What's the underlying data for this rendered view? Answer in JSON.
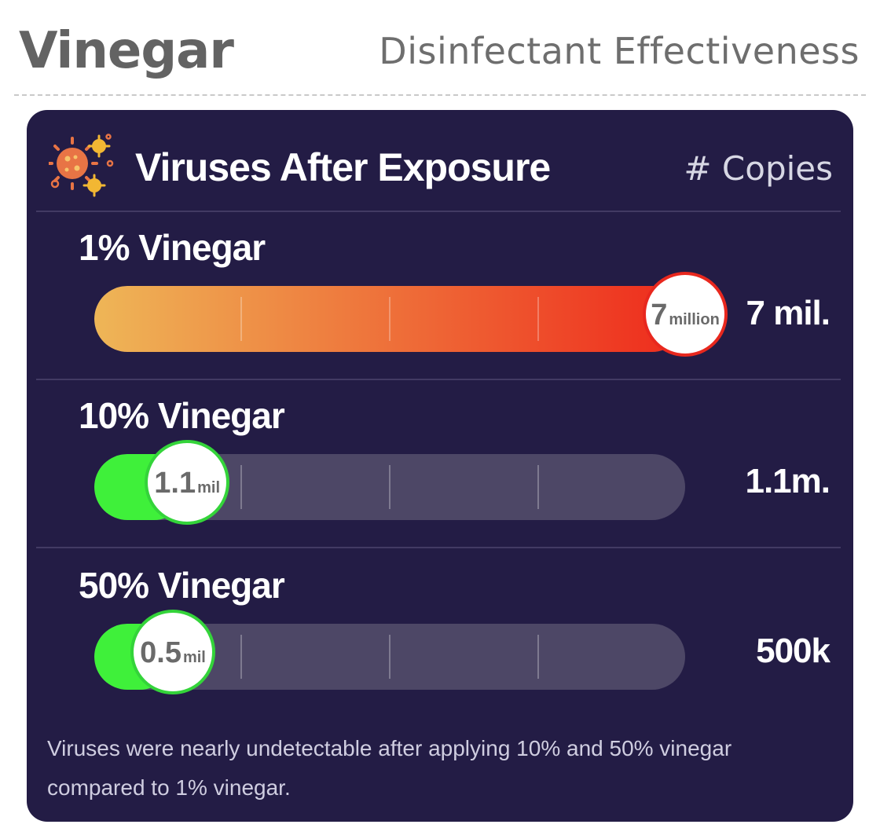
{
  "header": {
    "title": "Vinegar",
    "subtitle": "Disinfectant Effectiveness"
  },
  "card": {
    "title": "Viruses After Exposure",
    "unit_label": "# Copies",
    "icon": "virus-icon",
    "footnote": "Viruses were nearly undetectable after applying 10% and 50% vinegar compared to 1% vinegar."
  },
  "colors": {
    "card_background": "#231c45",
    "track": "#4d4766",
    "high_gradient_start": "#eeb657",
    "high_gradient_end": "#ee2a1c",
    "high_ring": "#e8281e",
    "low_fill": "#3ff03a",
    "low_ring": "#34d43a"
  },
  "chart_data": {
    "type": "bar",
    "orientation": "horizontal",
    "title": "Viruses After Exposure",
    "ylabel": "# Copies",
    "categories": [
      "1% Vinegar",
      "10% Vinegar",
      "50% Vinegar"
    ],
    "values": [
      7000000,
      1100000,
      500000
    ],
    "xlim": [
      0,
      7000000
    ],
    "grid": true,
    "bars": [
      {
        "label": "1% Vinegar",
        "value": 7000000,
        "bubble_number": "7",
        "bubble_unit": "million",
        "value_text": "7 mil.",
        "status": "high"
      },
      {
        "label": "10% Vinegar",
        "value": 1100000,
        "bubble_number": "1.1",
        "bubble_unit": "mil",
        "value_text": "1.1m.",
        "status": "low"
      },
      {
        "label": "50% Vinegar",
        "value": 500000,
        "bubble_number": "0.5",
        "bubble_unit": "mil",
        "value_text": "500k",
        "status": "low"
      }
    ]
  }
}
